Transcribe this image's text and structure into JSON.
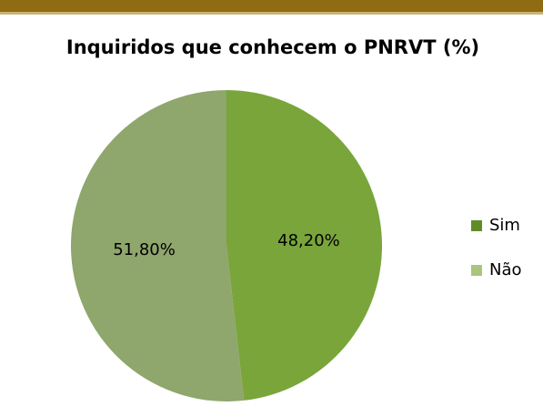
{
  "chart_data": {
    "type": "pie",
    "title": "Inquiridos que conhecem o PNRVT (%)",
    "categories": [
      "Sim",
      "Não"
    ],
    "values": [
      48.2,
      51.8
    ],
    "value_labels": [
      "48,20%",
      "51,80%"
    ],
    "colors": [
      "#79a53a",
      "#8fa66c"
    ],
    "legend_colors": [
      "#5f8c26",
      "#a9c57e"
    ],
    "legend": "right"
  }
}
